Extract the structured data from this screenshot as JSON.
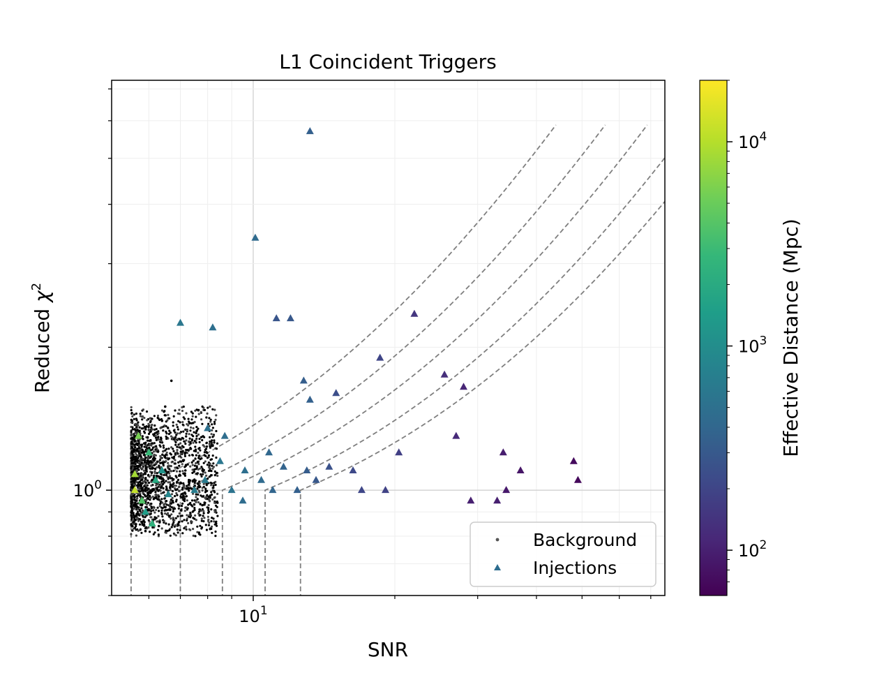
{
  "chart_data": {
    "type": "scatter",
    "title": "L1 Coincident Triggers",
    "xlabel": "SNR",
    "ylabel_text": "Reduced ",
    "ylabel_symbol": "χ",
    "ylabel_sup": "2",
    "x_scale": "log",
    "y_scale": "log",
    "xlim": [
      5.0,
      75.0
    ],
    "ylim": [
      0.6,
      7.3
    ],
    "x_ticks": [
      {
        "value": 10,
        "base": "10",
        "exp": "1"
      }
    ],
    "y_ticks": [
      {
        "value": 1,
        "base": "10",
        "exp": "0"
      }
    ],
    "grid": true,
    "legend": {
      "placement": "lower right",
      "entries": [
        {
          "label": "Background",
          "marker": "dot",
          "color": "#555555"
        },
        {
          "label": "Injections",
          "marker": "triangle",
          "color": "#2c6c8e"
        }
      ]
    },
    "colorbar": {
      "label": "Effective Distance (Mpc)",
      "scale": "log",
      "range": [
        60,
        20000
      ],
      "ticks": [
        {
          "value": 100,
          "base": "10",
          "exp": "2"
        },
        {
          "value": 1000,
          "base": "10",
          "exp": "3"
        },
        {
          "value": 10000,
          "base": "10",
          "exp": "4"
        }
      ],
      "colormap": [
        "#440154",
        "#482878",
        "#3e4989",
        "#31688e",
        "#26828e",
        "#1f9e89",
        "#35b779",
        "#6ece58",
        "#b5de2b",
        "#fde725"
      ]
    },
    "threshold_curves": {
      "style": "dashed",
      "color": "#7f7f7f",
      "snr_thresholds": [
        5.5,
        7.0,
        8.6,
        10.6,
        12.6
      ]
    },
    "series": [
      {
        "name": "Background",
        "marker": "dot",
        "color": "#000000",
        "points": [
          [
            5.5,
            1.0
          ],
          [
            5.6,
            1.1
          ],
          [
            5.8,
            1.2
          ],
          [
            6.0,
            1.25
          ],
          [
            6.2,
            1.3
          ],
          [
            6.4,
            1.4
          ],
          [
            6.5,
            1.5
          ],
          [
            6.7,
            1.7
          ],
          [
            5.6,
            0.85
          ],
          [
            5.9,
            0.82
          ],
          [
            6.3,
            0.84
          ],
          [
            7.2,
            1.2
          ],
          [
            7.8,
            1.1
          ],
          [
            7.3,
            1.05
          ]
        ]
      },
      {
        "name": "Injections",
        "marker": "triangle",
        "points": [
          [
            5.6,
            1.08,
            9000
          ],
          [
            5.7,
            1.3,
            6000
          ],
          [
            5.8,
            0.95,
            4000
          ],
          [
            6.0,
            1.2,
            3000
          ],
          [
            6.2,
            1.05,
            2000
          ],
          [
            5.9,
            0.9,
            1500
          ],
          [
            6.4,
            1.1,
            1200
          ],
          [
            6.6,
            0.98,
            900
          ],
          [
            5.6,
            1.0,
            12000
          ],
          [
            6.1,
            0.85,
            2500
          ],
          [
            7.0,
            2.25,
            600
          ],
          [
            8.2,
            2.2,
            500
          ],
          [
            10.1,
            3.4,
            450
          ],
          [
            13.2,
            5.7,
            350
          ],
          [
            12.0,
            2.3,
            300
          ],
          [
            11.2,
            2.3,
            280
          ],
          [
            7.5,
            1.0,
            700
          ],
          [
            7.9,
            1.05,
            650
          ],
          [
            8.5,
            1.15,
            600
          ],
          [
            9.0,
            1.0,
            550
          ],
          [
            9.6,
            1.1,
            500
          ],
          [
            10.4,
            1.05,
            450
          ],
          [
            11.0,
            1.0,
            400
          ],
          [
            11.6,
            1.12,
            380
          ],
          [
            12.4,
            1.0,
            350
          ],
          [
            13.0,
            1.1,
            330
          ],
          [
            13.6,
            1.05,
            300
          ],
          [
            8.0,
            1.35,
            520
          ],
          [
            8.7,
            1.3,
            480
          ],
          [
            9.5,
            0.95,
            460
          ],
          [
            10.8,
            1.2,
            420
          ],
          [
            13.2,
            1.55,
            360
          ],
          [
            12.8,
            1.7,
            340
          ],
          [
            14.5,
            1.12,
            260
          ],
          [
            15.0,
            1.6,
            240
          ],
          [
            16.3,
            1.1,
            220
          ],
          [
            17.0,
            1.0,
            210
          ],
          [
            18.6,
            1.9,
            200
          ],
          [
            19.1,
            1.0,
            190
          ],
          [
            20.4,
            1.2,
            180
          ],
          [
            22.0,
            2.35,
            150
          ],
          [
            25.5,
            1.75,
            130
          ],
          [
            27.0,
            1.3,
            120
          ],
          [
            28.0,
            1.65,
            110
          ],
          [
            29.0,
            0.95,
            100
          ],
          [
            33.0,
            0.95,
            100
          ],
          [
            34.0,
            1.2,
            95
          ],
          [
            34.5,
            1.0,
            90
          ],
          [
            37.0,
            1.1,
            85
          ],
          [
            48.0,
            1.15,
            70
          ],
          [
            49.0,
            1.05,
            68
          ]
        ]
      }
    ]
  }
}
